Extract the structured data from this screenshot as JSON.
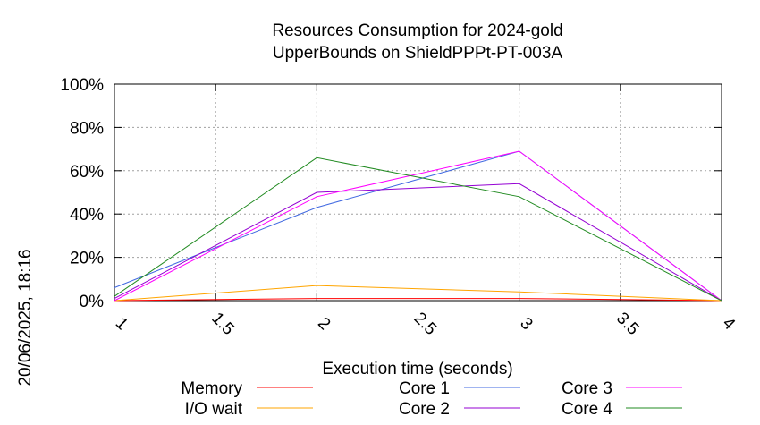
{
  "chart_data": {
    "type": "line",
    "title": [
      "Resources Consumption for 2024-gold",
      "UpperBounds on ShieldPPPt-PT-003A"
    ],
    "xlabel": "Execution time (seconds)",
    "ylabel": "",
    "side_label": "20/06/2025, 18:16",
    "xlim": [
      1,
      4
    ],
    "ylim": [
      0,
      100
    ],
    "x_ticks": [
      1,
      1.5,
      2,
      2.5,
      3,
      3.5,
      4
    ],
    "x_tick_labels": [
      "1",
      "1.5",
      "2",
      "2.5",
      "3",
      "3.5",
      "4"
    ],
    "y_ticks": [
      0,
      20,
      40,
      60,
      80,
      100
    ],
    "y_tick_labels": [
      "0%",
      "20%",
      "40%",
      "60%",
      "80%",
      "100%"
    ],
    "grid": true,
    "legend_placement": "bottom",
    "x": [
      1,
      2,
      3,
      4
    ],
    "series": [
      {
        "name": "Memory",
        "color": "#ff0000",
        "values": [
          0,
          1,
          1,
          0
        ]
      },
      {
        "name": "I/O wait",
        "color": "#ffa500",
        "values": [
          0,
          7,
          4,
          0
        ]
      },
      {
        "name": "Core 1",
        "color": "#4169e1",
        "values": [
          6,
          43,
          69,
          0
        ]
      },
      {
        "name": "Core 2",
        "color": "#9400d3",
        "values": [
          1,
          50,
          54,
          0
        ]
      },
      {
        "name": "Core 3",
        "color": "#ff00ff",
        "values": [
          0,
          48,
          69,
          0
        ]
      },
      {
        "name": "Core 4",
        "color": "#228b22",
        "values": [
          2,
          66,
          48,
          0
        ]
      }
    ]
  }
}
